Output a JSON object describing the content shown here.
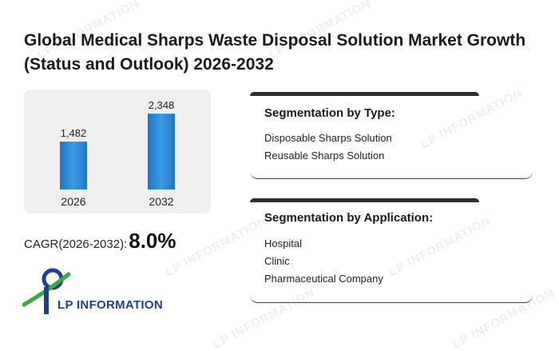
{
  "title": "Global Medical Sharps Waste Disposal Solution Market Growth (Status and Outlook) 2026-2032",
  "chart_data": {
    "type": "bar",
    "categories": [
      "2026",
      "2032"
    ],
    "values": [
      1482,
      2348
    ],
    "value_labels": [
      "1,482",
      "2,348"
    ],
    "bar_color": "#2a8ad9",
    "ylim": [
      0,
      2600
    ],
    "grid": false
  },
  "cagr": {
    "label": "CAGR(2026-2032):",
    "value": "8.0%"
  },
  "segmentation": {
    "type": {
      "title": "Segmentation by Type:",
      "items": [
        "Disposable Sharps Solution",
        "Reusable Sharps Solution"
      ]
    },
    "application": {
      "title": "Segmentation by Application:",
      "items": [
        "Hospital",
        "Clinic",
        "Pharmaceutical Company"
      ]
    }
  },
  "logo": {
    "text": "LP INFORMATION",
    "colors": {
      "navy": "#1d3f8f",
      "green": "#3aa845"
    }
  },
  "watermark": "LP INFORMATION"
}
